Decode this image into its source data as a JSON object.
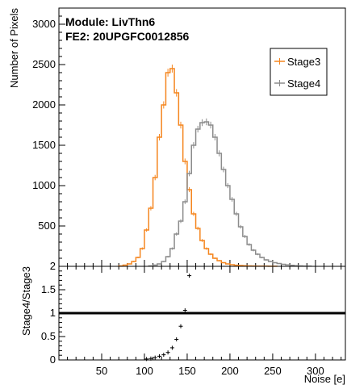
{
  "chart_data": [
    {
      "type": "line",
      "panel": "top",
      "title": "Module: LivThn6",
      "subtitle": "FE2: 20UPGFC0012856",
      "xlabel": "Noise [e]",
      "ylabel": "Number of Pixels",
      "xlim": [
        0,
        335
      ],
      "ylim": [
        0,
        3200
      ],
      "yticks": [
        500,
        1000,
        1500,
        2000,
        2500,
        3000
      ],
      "legend_position": "top-right",
      "series": [
        {
          "name": "Stage3",
          "color": "#f5861f",
          "x": [
            72.5,
            77.5,
            82.5,
            87.5,
            92.5,
            97.5,
            102.5,
            107.5,
            112.5,
            117.5,
            122.5,
            127.5,
            132.5,
            137.5,
            142.5,
            147.5,
            152.5,
            157.5,
            162.5,
            167.5,
            172.5,
            177.5,
            182.5,
            187.5,
            192.5,
            197.5,
            202.5,
            207.5,
            212.5,
            217.5,
            222.5,
            227.5,
            232.5,
            237.5,
            242.5,
            247.5,
            252.5
          ],
          "values": [
            5,
            15,
            30,
            60,
            110,
            220,
            450,
            720,
            1100,
            1600,
            2000,
            2400,
            2450,
            2150,
            1750,
            1300,
            950,
            650,
            470,
            320,
            220,
            150,
            100,
            70,
            45,
            30,
            20,
            14,
            10,
            7,
            5,
            4,
            3,
            2,
            2,
            1,
            1
          ]
        },
        {
          "name": "Stage4",
          "color": "#8c8c8c",
          "x": [
            107.5,
            112.5,
            117.5,
            122.5,
            127.5,
            132.5,
            137.5,
            142.5,
            147.5,
            152.5,
            157.5,
            162.5,
            167.5,
            172.5,
            177.5,
            182.5,
            187.5,
            192.5,
            197.5,
            202.5,
            207.5,
            212.5,
            217.5,
            222.5,
            227.5,
            232.5,
            237.5,
            242.5,
            247.5,
            252.5,
            257.5,
            262.5,
            267.5,
            272.5,
            277.5,
            282.5,
            287.5,
            292.5
          ],
          "values": [
            5,
            15,
            30,
            60,
            120,
            220,
            400,
            560,
            800,
            1150,
            1500,
            1700,
            1780,
            1790,
            1750,
            1600,
            1400,
            1200,
            1000,
            830,
            650,
            490,
            370,
            270,
            200,
            150,
            110,
            80,
            60,
            45,
            35,
            25,
            18,
            12,
            8,
            5,
            3,
            2
          ]
        }
      ]
    },
    {
      "type": "scatter",
      "panel": "bottom",
      "xlabel": "Noise [e]",
      "ylabel": "Stage4/Stage3",
      "xlim": [
        0,
        335
      ],
      "ylim": [
        0,
        2
      ],
      "xticks": [
        50,
        100,
        150,
        200,
        250,
        300
      ],
      "yticks": [
        0,
        0.5,
        1,
        1.5,
        2
      ],
      "reference_line": 1,
      "series": [
        {
          "name": "",
          "color": "#000000",
          "x": [
            102.5,
            107.5,
            112.5,
            117.5,
            122.5,
            127.5,
            132.5,
            137.5,
            142.5,
            147.5,
            152.5
          ],
          "values": [
            0.02,
            0.03,
            0.05,
            0.08,
            0.11,
            0.16,
            0.26,
            0.44,
            0.72,
            1.06,
            1.8
          ]
        }
      ]
    }
  ]
}
